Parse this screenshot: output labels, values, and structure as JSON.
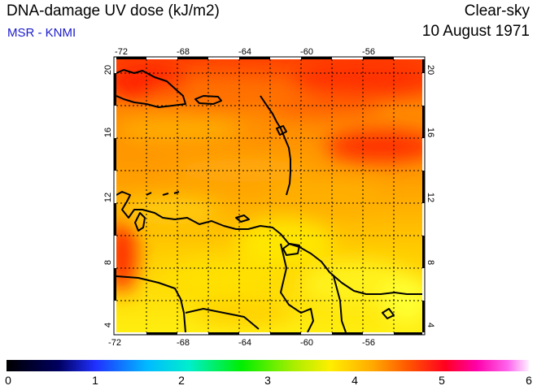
{
  "header": {
    "title": "DNA-damage UV dose (kJ/m2)",
    "source": "MSR - KNMI",
    "mode": "Clear-sky",
    "date": "10 August 1971"
  },
  "map": {
    "lon_ticks": [
      "-72",
      "-68",
      "-64",
      "-60",
      "-56"
    ],
    "lat_ticks": [
      "4",
      "8",
      "12",
      "16",
      "20"
    ],
    "lon_range": [
      -72,
      -52
    ],
    "lat_range": [
      3.5,
      20.5
    ]
  },
  "colorbar": {
    "labels": [
      "0",
      "1",
      "2",
      "3",
      "4",
      "5",
      "6"
    ],
    "range": [
      0,
      6
    ]
  },
  "colors": {
    "land_outline": "#000000",
    "subtitle": "#1a1acc"
  }
}
